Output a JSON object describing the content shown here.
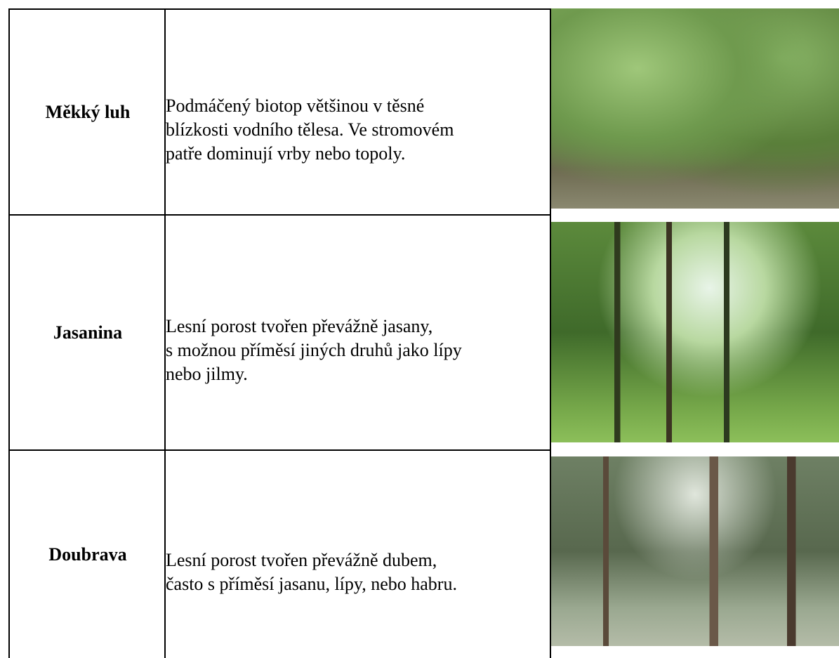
{
  "table": {
    "rows": [
      {
        "name": "Měkký luh",
        "description": [
          "Podmáčený biotop většinou v těsné",
          "blízkosti vodního tělesa. Ve stromovém",
          "patře dominují vrby nebo topoly."
        ]
      },
      {
        "name": "Jasanina",
        "description": [
          "Lesní porost tvořen převážně jasany,",
          "s možnou příměsí jiných druhů jako lípy",
          "nebo jilmy."
        ]
      },
      {
        "name": "Doubrava",
        "description": [
          "Lesní porost tvořen převážně dubem,",
          "často s příměsí jasanu, lípy, nebo habru."
        ]
      }
    ]
  }
}
